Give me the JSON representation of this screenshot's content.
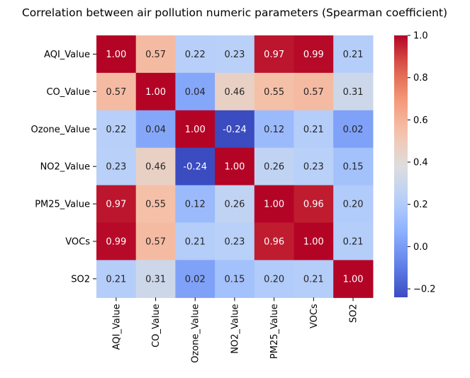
{
  "chart_data": {
    "type": "heatmap",
    "title": "Correlation between air pollution numeric parameters (Spearman coefficient)",
    "xlabel": "",
    "ylabel": "",
    "row_labels": [
      "AQI_Value",
      "CO_Value",
      "Ozone_Value",
      "NO2_Value",
      "PM25_Value",
      "VOCs",
      "SO2"
    ],
    "col_labels": [
      "AQI_Value",
      "CO_Value",
      "Ozone_Value",
      "NO2_Value",
      "PM25_Value",
      "VOCs",
      "SO2"
    ],
    "values": [
      [
        1.0,
        0.57,
        0.22,
        0.23,
        0.97,
        0.99,
        0.21
      ],
      [
        0.57,
        1.0,
        0.04,
        0.46,
        0.55,
        0.57,
        0.31
      ],
      [
        0.22,
        0.04,
        1.0,
        -0.24,
        0.12,
        0.21,
        0.02
      ],
      [
        0.23,
        0.46,
        -0.24,
        1.0,
        0.26,
        0.23,
        0.15
      ],
      [
        0.97,
        0.55,
        0.12,
        0.26,
        1.0,
        0.96,
        0.2
      ],
      [
        0.99,
        0.57,
        0.21,
        0.23,
        0.96,
        1.0,
        0.21
      ],
      [
        0.21,
        0.31,
        0.02,
        0.15,
        0.2,
        0.21,
        1.0
      ]
    ],
    "value_format": "2 decimals",
    "colormap": "coolwarm",
    "vmin": -0.24,
    "vmax": 1.0,
    "colorbar_ticks": [
      -0.2,
      0.0,
      0.2,
      0.4,
      0.6,
      0.8,
      1.0
    ],
    "colorbar_tick_labels": [
      "−0.2",
      "0.0",
      "0.2",
      "0.4",
      "0.6",
      "0.8",
      "1.0"
    ],
    "legend": "colorbar right",
    "grid": false
  }
}
